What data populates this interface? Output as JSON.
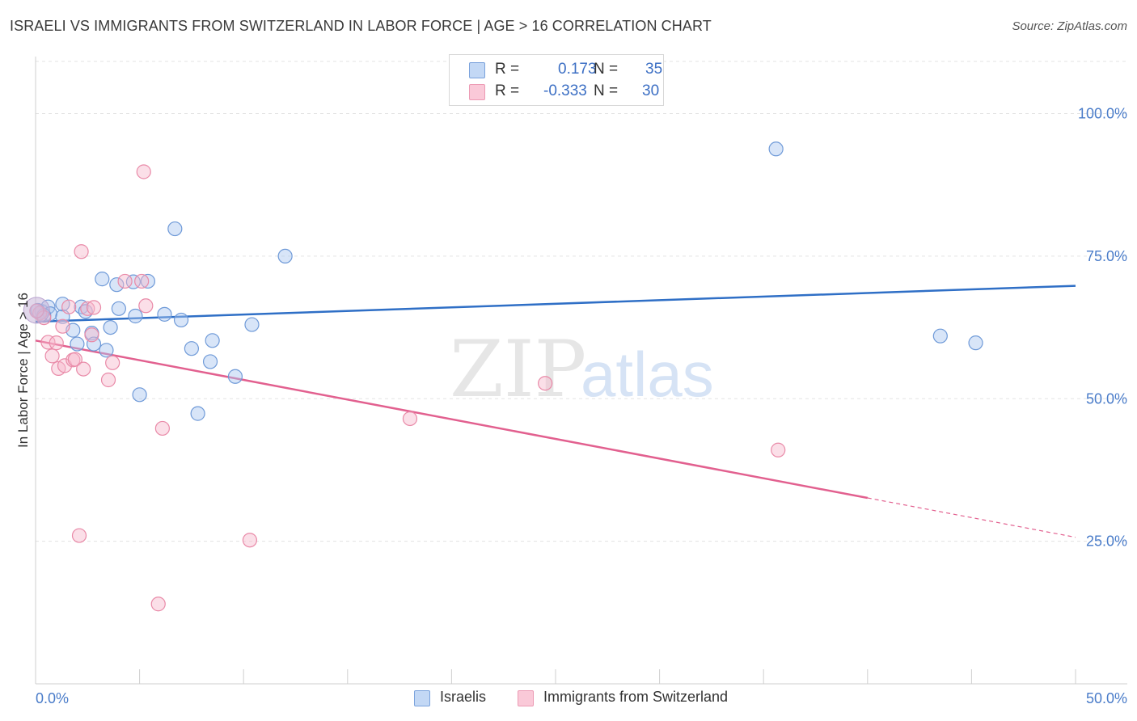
{
  "header": {
    "title": "ISRAELI VS IMMIGRANTS FROM SWITZERLAND IN LABOR FORCE | AGE > 16 CORRELATION CHART",
    "source": "Source: ZipAtlas.com"
  },
  "legend": {
    "r_label": "R =",
    "n_label": "N =",
    "series_stats": [
      {
        "r": "0.173",
        "n": "35"
      },
      {
        "r": "-0.333",
        "n": "30"
      }
    ]
  },
  "watermark": {
    "zip": "ZIP",
    "atlas": "atlas"
  },
  "chart_data": {
    "type": "scatter",
    "ylabel": "In Labor Force | Age > 16",
    "xlim": [
      0,
      50
    ],
    "ylim": [
      0,
      110
    ],
    "x_tick_labels": [
      "0.0%",
      "50.0%"
    ],
    "y_tick_labels": [
      {
        "value": 25,
        "label": "25.0%"
      },
      {
        "value": 50,
        "label": "50.0%"
      },
      {
        "value": 75,
        "label": "75.0%"
      },
      {
        "value": 100,
        "label": "100.0%"
      }
    ],
    "grid": "horizontal dashed",
    "legend_position": "top-center",
    "series": [
      {
        "name": "Israelis",
        "color": "#a9c6ef",
        "stroke": "#6f9ad8",
        "trend_color": "#2f6fc6",
        "trend": {
          "x0": 0,
          "y0": 63.5,
          "x1": 50,
          "y1": 69.8
        },
        "points": [
          [
            0.3,
            65.3
          ],
          [
            0.6,
            66.1
          ],
          [
            0.7,
            64.9
          ],
          [
            1.3,
            64.4
          ],
          [
            1.3,
            66.6
          ],
          [
            1.8,
            62.0
          ],
          [
            2.0,
            59.6
          ],
          [
            2.2,
            66.1
          ],
          [
            2.4,
            65.3
          ],
          [
            2.7,
            61.5
          ],
          [
            2.8,
            59.6
          ],
          [
            3.2,
            71.0
          ],
          [
            3.4,
            58.5
          ],
          [
            3.6,
            62.5
          ],
          [
            3.9,
            70.0
          ],
          [
            4.0,
            65.8
          ],
          [
            4.7,
            70.5
          ],
          [
            4.8,
            64.5
          ],
          [
            5.0,
            50.7
          ],
          [
            5.4,
            70.6
          ],
          [
            6.2,
            64.8
          ],
          [
            6.7,
            79.8
          ],
          [
            7.0,
            63.8
          ],
          [
            7.5,
            58.8
          ],
          [
            7.8,
            47.4
          ],
          [
            8.4,
            56.5
          ],
          [
            8.5,
            60.2
          ],
          [
            9.6,
            53.9
          ],
          [
            10.4,
            63.0
          ],
          [
            12.0,
            75.0
          ],
          [
            35.6,
            93.8
          ],
          [
            43.5,
            61.0
          ],
          [
            45.2,
            59.8
          ],
          [
            0.1,
            65.5
          ],
          [
            0.4,
            64.6
          ]
        ]
      },
      {
        "name": "Immigrants from Switzerland",
        "color": "#f6b9cd",
        "stroke": "#e98aa8",
        "trend_color": "#e2608f",
        "trend": {
          "x0": 0,
          "y0": 60.2,
          "x1": 40,
          "y1": 32.6
        },
        "trend_dashed": {
          "x0": 40,
          "y0": 32.6,
          "x1": 50,
          "y1": 25.7
        },
        "points": [
          [
            0.2,
            65.0
          ],
          [
            0.4,
            64.2
          ],
          [
            0.6,
            59.9
          ],
          [
            0.8,
            57.5
          ],
          [
            1.0,
            59.8
          ],
          [
            1.1,
            55.3
          ],
          [
            1.3,
            62.7
          ],
          [
            1.4,
            55.8
          ],
          [
            1.6,
            66.1
          ],
          [
            1.8,
            56.8
          ],
          [
            1.9,
            56.9
          ],
          [
            2.1,
            26.0
          ],
          [
            2.2,
            75.8
          ],
          [
            2.3,
            55.2
          ],
          [
            2.5,
            65.8
          ],
          [
            2.7,
            61.2
          ],
          [
            2.8,
            66.0
          ],
          [
            3.5,
            53.3
          ],
          [
            3.7,
            56.3
          ],
          [
            4.3,
            70.6
          ],
          [
            5.1,
            70.6
          ],
          [
            5.2,
            89.8
          ],
          [
            5.3,
            66.3
          ],
          [
            5.9,
            14.0
          ],
          [
            6.1,
            44.8
          ],
          [
            10.3,
            25.2
          ],
          [
            18.0,
            46.5
          ],
          [
            24.5,
            52.7
          ],
          [
            35.7,
            41.0
          ],
          [
            0.05,
            65.4
          ]
        ]
      }
    ]
  }
}
